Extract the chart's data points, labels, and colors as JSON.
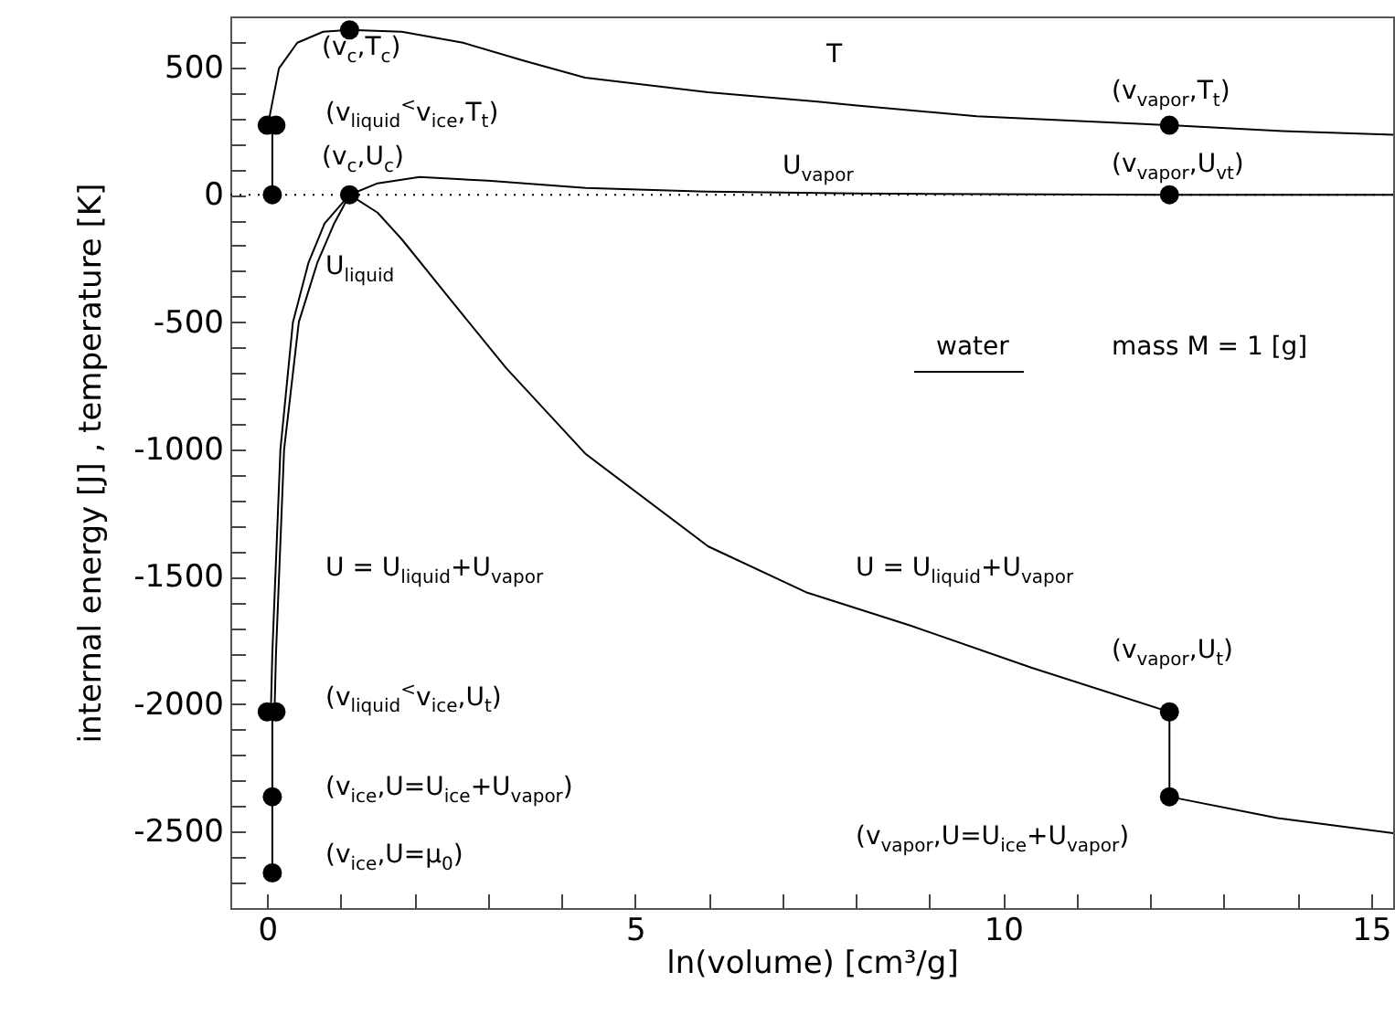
{
  "chart_data": {
    "type": "line",
    "xlabel": "ln(volume)   [cm³/g]",
    "ylabel": "internal energy   [J]  ,   temperature   [K]",
    "xlim": [
      -0.5,
      15.3
    ],
    "ylim": [
      -2800,
      700
    ],
    "xticks": [
      0,
      {
        "value": 1,
        "label": null
      },
      {
        "value": 2,
        "label": null
      },
      {
        "value": 3,
        "label": null
      },
      {
        "value": 4,
        "label": null
      },
      5,
      {
        "value": 6,
        "label": null
      },
      {
        "value": 7,
        "label": null
      },
      {
        "value": 8,
        "label": null
      },
      {
        "value": 9,
        "label": null
      },
      10,
      {
        "value": 11,
        "label": null
      },
      {
        "value": 12,
        "label": null
      },
      {
        "value": 13,
        "label": null
      },
      {
        "value": 14,
        "label": null
      },
      15
    ],
    "yticks": [
      {
        "value": -2700,
        "label": null
      },
      {
        "value": -2600,
        "label": null
      },
      -2500,
      {
        "value": -2400,
        "label": null
      },
      {
        "value": -2300,
        "label": null
      },
      {
        "value": -2200,
        "label": null
      },
      {
        "value": -2100,
        "label": null
      },
      -2000,
      {
        "value": -1900,
        "label": null
      },
      {
        "value": -1800,
        "label": null
      },
      {
        "value": -1700,
        "label": null
      },
      {
        "value": -1600,
        "label": null
      },
      -1500,
      {
        "value": -1400,
        "label": null
      },
      {
        "value": -1300,
        "label": null
      },
      {
        "value": -1200,
        "label": null
      },
      {
        "value": -1100,
        "label": null
      },
      -1000,
      {
        "value": -900,
        "label": null
      },
      {
        "value": -800,
        "label": null
      },
      {
        "value": -700,
        "label": null
      },
      {
        "value": -600,
        "label": null
      },
      -500,
      {
        "value": -400,
        "label": null
      },
      {
        "value": -300,
        "label": null
      },
      {
        "value": -200,
        "label": null
      },
      {
        "value": -100,
        "label": null
      },
      0,
      {
        "value": 100,
        "label": null
      },
      {
        "value": 200,
        "label": null
      },
      {
        "value": 300,
        "label": null
      },
      {
        "value": 400,
        "label": null
      },
      500,
      {
        "value": 600,
        "label": null
      }
    ],
    "grid": false,
    "ref_lines": [
      {
        "axis": "y",
        "value": 0,
        "line_style": "dotted",
        "color": "#000000"
      }
    ],
    "series": [
      {
        "color": "#000000",
        "x": [
          0.01,
          0.16,
          0.41,
          0.76,
          1.12,
          1.83,
          2.66,
          3.5,
          4.32,
          5.99,
          7.48,
          7.98,
          9.64,
          12.26,
          13.8,
          15.3
        ],
        "values": [
          273,
          496,
          597,
          640,
          647,
          640,
          597,
          525,
          460,
          402,
          366,
          351,
          308,
          273,
          250,
          236
        ]
      },
      {
        "color": "#000000",
        "x": [
          0.05,
          0.07,
          0.18,
          0.35,
          0.56,
          0.78,
          1.12,
          1.5,
          1.83,
          2.5,
          3.25,
          4.33,
          5.99,
          7.32,
          8.74,
          10.39,
          12.26
        ],
        "values": [
          -2030,
          -1800,
          -1000,
          -500,
          -268,
          -113,
          0,
          -70,
          -175,
          -415,
          -681,
          -1018,
          -1380,
          -1560,
          -1691,
          -1857,
          -2030
        ]
      },
      {
        "color": "#000000",
        "x": [
          0.1,
          0.12,
          0.23,
          0.43,
          0.68,
          0.91,
          1.12,
          1.5,
          2.07,
          3,
          4.33,
          6,
          8,
          12.26,
          15.3
        ],
        "values": [
          -2030,
          -1800,
          -1000,
          -500,
          -268,
          -113,
          0,
          45,
          70,
          55,
          27,
          12,
          5,
          0,
          0
        ]
      },
      {
        "color": "#000000",
        "x": [
          12.26,
          12.26,
          13.73,
          15.3
        ],
        "values": [
          -2030,
          -2363,
          -2447,
          -2506
        ]
      },
      {
        "color": "#000000",
        "x": [
          0.07,
          0.07
        ],
        "values": [
          273,
          0
        ]
      },
      {
        "color": "#000000",
        "x": [
          0.07,
          0.07
        ],
        "values": [
          -2030,
          -2662
        ]
      },
      {
        "type": "scatter",
        "color": "#000000",
        "marker": "circle",
        "x": [
          0,
          0.12,
          0.07,
          1.12,
          1.12,
          12.26,
          12.26,
          0,
          0.12,
          0.07,
          0.07,
          12.26,
          12.26
        ],
        "values": [
          273,
          273,
          0,
          647,
          0,
          273,
          0,
          -2030,
          -2030,
          -2363,
          -2662,
          -2030,
          -2363
        ]
      }
    ],
    "annotations": [
      "(v$_{c}$,T$_{c}$)",
      "T",
      "(v$_{liquid}$$^{<}$v$_{ice}$,T$_{t}$)",
      "(v$_{c}$,U$_{c}$)",
      "U$_{vapor}$",
      "(v$_{vapor}$,T$_{t}$)",
      "(v$_{vapor}$,U$_{vt}$)",
      "U$_{liquid}$",
      "water",
      "mass M = 1 [g]",
      "U = U$_{liquid}$+U$_{vapor}$",
      "U = U$_{liquid}$+U$_{vapor}$",
      "(v$_{vapor}$,U$_{t}$)",
      "(v$_{liquid}$$^{<}$v$_{ice}$,U$_{t}$)",
      "(v$_{ice}$,U=U$_{ice}$+U$_{vapor}$)",
      "(v$_{vapor}$,U=U$_{ice}$+U$_{vapor}$)",
      "(v$_{ice}$,U=μ$_{0}$)"
    ]
  }
}
